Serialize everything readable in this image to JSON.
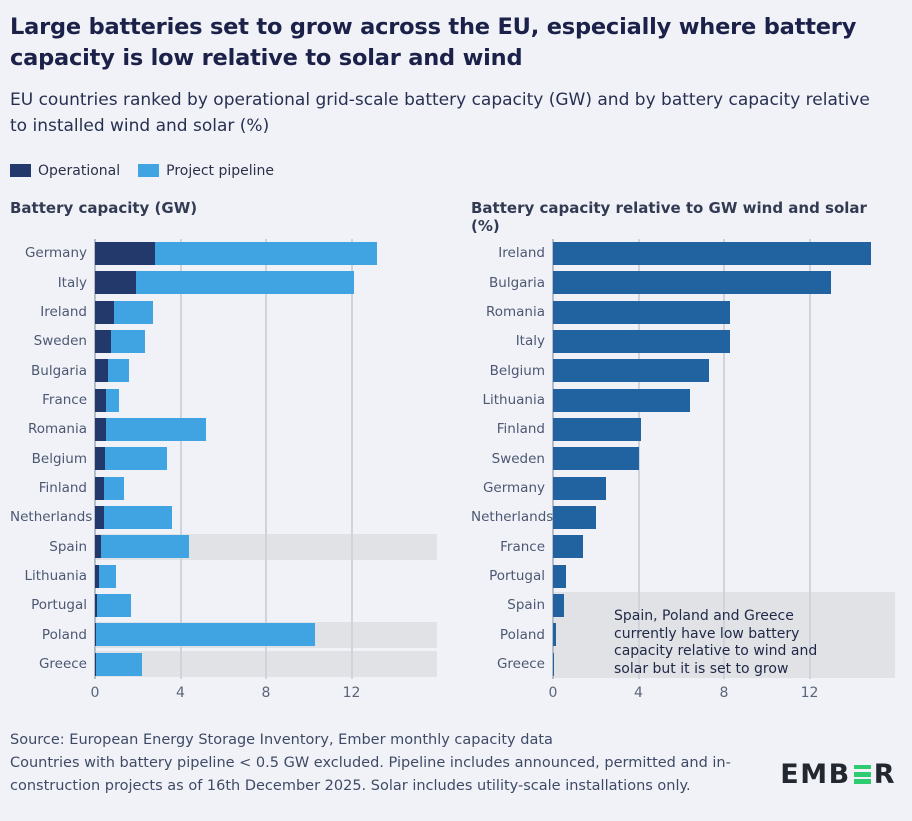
{
  "header": {
    "title": "Large batteries set to grow across the EU, especially where battery capacity is low relative to solar and wind",
    "subtitle": "EU countries ranked by operational grid-scale battery capacity (GW) and by battery capacity relative to installed wind and solar (%)"
  },
  "legend": {
    "items": [
      {
        "label": "Operational",
        "color": "#24396b"
      },
      {
        "label": "Project pipeline",
        "color": "#41a4e2"
      }
    ]
  },
  "chart_data": [
    {
      "type": "bar",
      "orientation": "horizontal",
      "stacked": true,
      "title": "Battery capacity (GW)",
      "categories": [
        "Germany",
        "Italy",
        "Ireland",
        "Sweden",
        "Bulgaria",
        "France",
        "Romania",
        "Belgium",
        "Finland",
        "Netherlands",
        "Spain",
        "Lithuania",
        "Portugal",
        "Poland",
        "Greece"
      ],
      "series": [
        {
          "name": "Operational",
          "color": "#24396b",
          "values": [
            2.8,
            1.9,
            0.9,
            0.75,
            0.6,
            0.5,
            0.5,
            0.45,
            0.4,
            0.4,
            0.3,
            0.2,
            0.1,
            0.05,
            0.05
          ]
        },
        {
          "name": "Project pipeline",
          "color": "#41a4e2",
          "values": [
            10.4,
            10.2,
            1.8,
            1.6,
            1.0,
            0.6,
            4.7,
            2.9,
            0.95,
            3.2,
            4.1,
            0.8,
            1.6,
            10.25,
            2.15
          ]
        }
      ],
      "xlim": [
        0,
        16
      ],
      "ticks": [
        0,
        4,
        8,
        12
      ],
      "grid": true,
      "highlight": {
        "rows": [
          "Spain",
          "Poland",
          "Greece"
        ],
        "merged": false,
        "color": "#e1e2e5"
      },
      "layout": {
        "label_width": 85
      }
    },
    {
      "type": "bar",
      "orientation": "horizontal",
      "stacked": false,
      "title": "Battery capacity relative to GW wind and solar (%)",
      "categories": [
        "Ireland",
        "Bulgaria",
        "Romania",
        "Italy",
        "Belgium",
        "Lithuania",
        "Finland",
        "Sweden",
        "Germany",
        "Netherlands",
        "France",
        "Portugal",
        "Spain",
        "Poland",
        "Greece"
      ],
      "series": [
        {
          "name": "Battery capacity relative to wind and solar",
          "color": "#2163a0",
          "values": [
            14.9,
            13.0,
            8.3,
            8.3,
            7.3,
            6.4,
            4.1,
            4.0,
            2.5,
            2.0,
            1.4,
            0.6,
            0.5,
            0.15,
            0.05
          ]
        }
      ],
      "xlim": [
        0,
        16
      ],
      "ticks": [
        0,
        4,
        8,
        12
      ],
      "grid": true,
      "highlight": {
        "rows": [
          "Spain",
          "Poland",
          "Greece"
        ],
        "merged": true,
        "color": "#e1e2e5"
      },
      "annotation_lines": [
        "Spain, Poland and Greece",
        "currently have low battery",
        "capacity relative to wind and",
        "solar but it is set to grow"
      ],
      "layout": {
        "label_width": 82
      }
    }
  ],
  "footer": {
    "source_line": "Source: European Energy Storage Inventory, Ember monthly capacity data",
    "note_line": "Countries with battery pipeline < 0.5 GW excluded. Pipeline includes announced, permitted and in-construction projects as of 16th December 2025. Solar includes utility-scale installations only."
  },
  "brand": {
    "name": "EMBER",
    "prefix": "EMB",
    "suffix": "R",
    "green": "#2ecb70",
    "dark": "#23272f"
  }
}
